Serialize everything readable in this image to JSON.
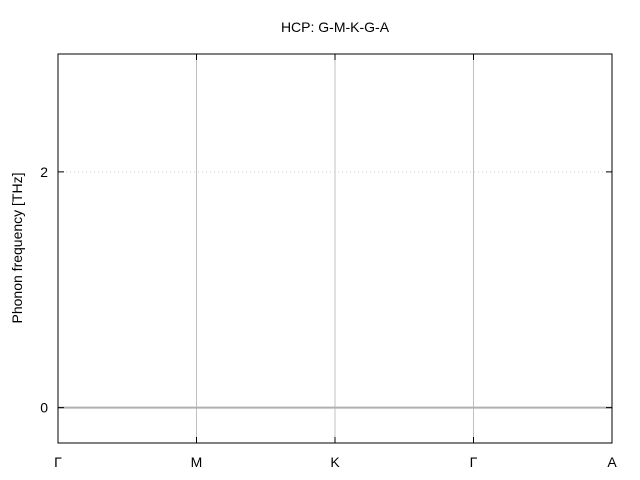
{
  "chart_data": {
    "type": "line",
    "title": "HCP: G-M-K-G-A",
    "xlabel": "",
    "ylabel": "Phonon frequency [THz]",
    "x_ticks": [
      "Γ",
      "M",
      "K",
      "Γ",
      "A"
    ],
    "y_ticks": [
      0,
      2
    ],
    "ylim": [
      -0.3,
      3.0
    ],
    "grid": {
      "vertical_at_high_symmetry_points": true,
      "horizontal_dotted_at": [
        2
      ],
      "zero_line": true
    },
    "series": [],
    "colors": {
      "grid": "#c0c0c0",
      "zero_line": "#b0b0b0",
      "dotted": "#d0d0d0",
      "frame": "#000000"
    }
  }
}
